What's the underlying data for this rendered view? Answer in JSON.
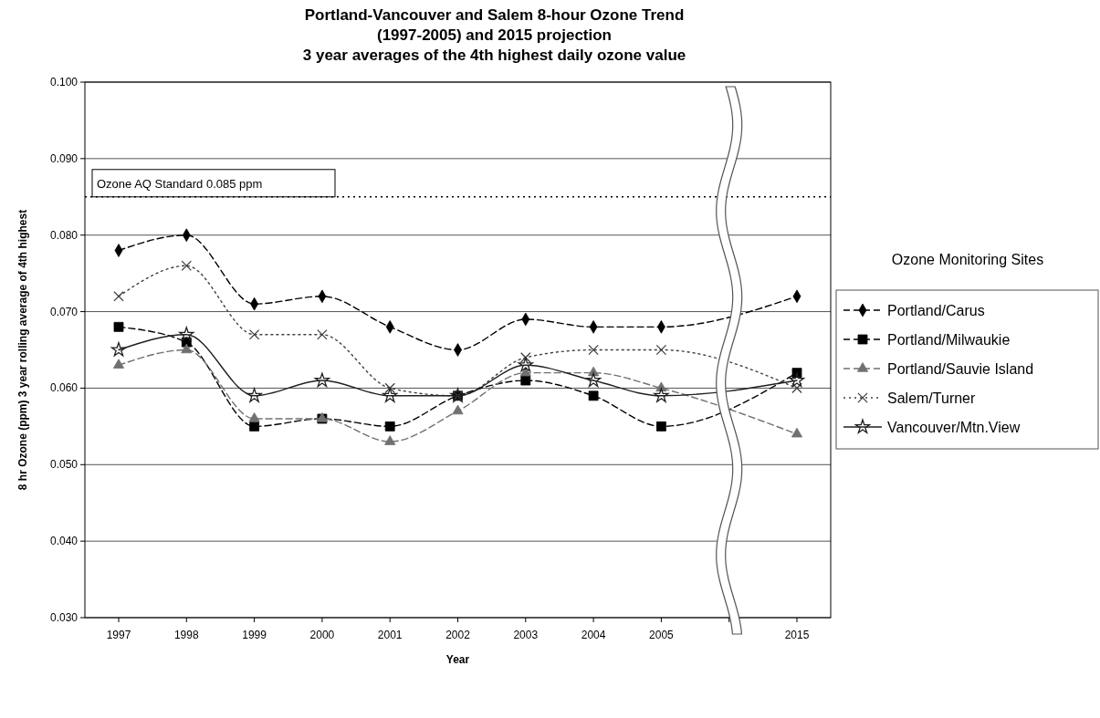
{
  "chart_data": {
    "type": "line",
    "title": "Portland-Vancouver and Salem 8-hour Ozone Trend\n(1997-2005) and 2015 projection\n3 year averages of the 4th highest daily ozone value",
    "xlabel": "Year",
    "ylabel": "8 hr Ozone (ppm) 3 year rolling average of 4th highest",
    "legend_title": "Ozone Monitoring Sites",
    "legend": "right",
    "grid": "y",
    "categories": [
      "1997",
      "1998",
      "1999",
      "2000",
      "2001",
      "2002",
      "2003",
      "2004",
      "2005",
      null,
      "2015"
    ],
    "ylim": [
      0.03,
      0.1
    ],
    "yticks": [
      {
        "value": 0.03,
        "label": "0.030"
      },
      {
        "value": 0.04,
        "label": "0.040"
      },
      {
        "value": 0.05,
        "label": "0.050"
      },
      {
        "value": 0.06,
        "label": "0.060"
      },
      {
        "value": 0.07,
        "label": "0.070"
      },
      {
        "value": 0.08,
        "label": "0.080"
      },
      {
        "value": 0.09,
        "label": "0.090"
      },
      {
        "value": 0.1,
        "label": "0.100"
      }
    ],
    "ref_lines": [
      {
        "axis": "y",
        "value": 0.085,
        "label": "Ozone AQ Standard 0.085 ppm",
        "line_style": "dotted",
        "color": "#000000"
      }
    ],
    "series": [
      {
        "name": "Portland/Carus",
        "color": "#000000",
        "marker": "diamond",
        "line_style": "dashed",
        "values": [
          0.078,
          0.08,
          0.071,
          0.072,
          0.068,
          0.065,
          0.069,
          0.068,
          0.068,
          null,
          0.072
        ]
      },
      {
        "name": "Portland/Milwaukie",
        "color": "#000000",
        "marker": "square",
        "line_style": "dashed",
        "values": [
          0.068,
          0.066,
          0.055,
          0.056,
          0.055,
          0.059,
          0.061,
          0.059,
          0.055,
          null,
          0.062
        ]
      },
      {
        "name": "Portland/Sauvie Island",
        "color": "#707070",
        "marker": "triangle",
        "line_style": "dashed",
        "values": [
          0.063,
          0.065,
          0.056,
          0.056,
          0.053,
          0.057,
          0.062,
          0.062,
          0.06,
          null,
          0.054
        ]
      },
      {
        "name": "Salem/Turner",
        "color": "#404040",
        "marker": "cross",
        "line_style": "dotted",
        "values": [
          0.072,
          0.076,
          0.067,
          0.067,
          0.06,
          0.059,
          0.064,
          0.065,
          0.065,
          null,
          0.06
        ]
      },
      {
        "name": "Vancouver/Mtn.View",
        "color": "#202020",
        "marker": "star",
        "line_style": "solid",
        "values": [
          0.065,
          0.067,
          0.059,
          0.061,
          0.059,
          0.059,
          0.063,
          0.061,
          0.059,
          null,
          0.061
        ]
      }
    ]
  }
}
